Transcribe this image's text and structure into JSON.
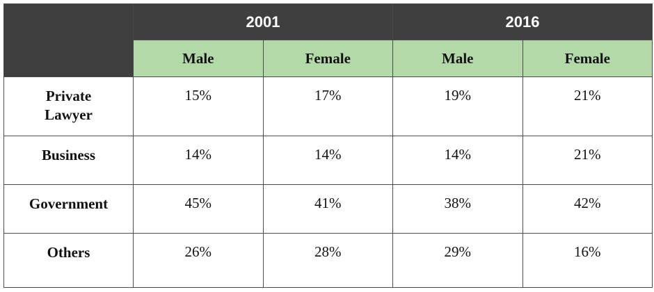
{
  "table": {
    "groups": [
      "2001",
      "2016"
    ],
    "subheaders": [
      "Male",
      "Female",
      "Male",
      "Female"
    ],
    "rows": [
      {
        "label": "Private Lawyer",
        "cells": [
          "15%",
          "17%",
          "19%",
          "21%"
        ]
      },
      {
        "label": "Business",
        "cells": [
          "14%",
          "14%",
          "14%",
          "21%"
        ]
      },
      {
        "label": "Government",
        "cells": [
          "45%",
          "41%",
          "38%",
          "42%"
        ]
      },
      {
        "label": "Others",
        "cells": [
          "26%",
          "28%",
          "29%",
          "16%"
        ]
      }
    ]
  }
}
